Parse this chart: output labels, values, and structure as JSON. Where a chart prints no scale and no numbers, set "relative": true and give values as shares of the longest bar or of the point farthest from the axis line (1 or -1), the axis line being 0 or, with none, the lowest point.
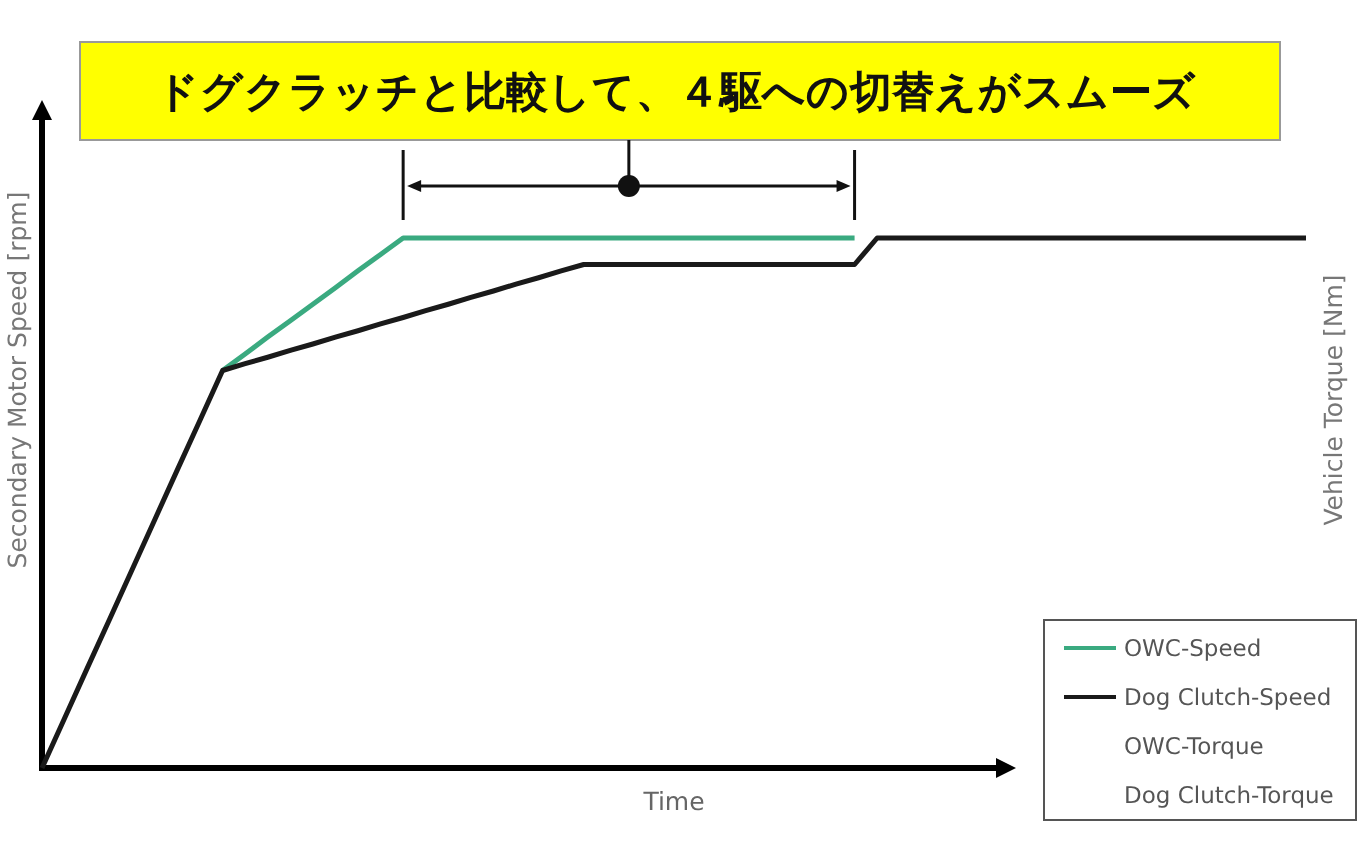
{
  "chart_data": {
    "type": "line",
    "title": "ドグクラッチと比較して、４駆への切替えがスムーズ",
    "xlabel": "Time",
    "ylabel": "Secondary Motor Speed [rpm]",
    "y2label": "Vehicle Torque [Nm]",
    "relative": true,
    "legend": "bottom right",
    "categories": [
      null,
      null,
      null,
      null,
      null,
      null,
      null,
      null,
      null,
      null,
      null,
      null,
      null,
      null,
      null,
      null,
      null,
      null,
      null,
      null,
      null,
      null,
      null,
      null,
      null,
      null,
      null,
      null,
      null,
      null,
      null,
      null,
      null,
      null,
      null,
      null,
      null,
      null,
      null,
      null,
      null,
      null,
      null,
      null,
      null,
      null,
      null,
      null,
      null,
      null,
      null,
      null,
      null,
      null,
      null,
      null,
      null
    ],
    "series": [
      {
        "name": "OWC-Speed",
        "color": "#3aaa80",
        "values": [
          null,
          null,
          null,
          null,
          null,
          null,
          null,
          null,
          0.75,
          0.781,
          0.813,
          0.844,
          0.875,
          0.906,
          0.938,
          0.969,
          1,
          1,
          1,
          1,
          1,
          1,
          1,
          1,
          1,
          1,
          1,
          1,
          1,
          1,
          1,
          1,
          1,
          1,
          1,
          1,
          1,
          null,
          null,
          null,
          null,
          null,
          null,
          null,
          null,
          null,
          null,
          null,
          null,
          null,
          null,
          null,
          null,
          null,
          null,
          null,
          null
        ]
      },
      {
        "name": "Dog Clutch-Speed",
        "color": "#1a1a1a",
        "values": [
          0,
          0.094,
          0.188,
          0.281,
          0.375,
          0.469,
          0.563,
          0.656,
          0.75,
          0.763,
          0.775,
          0.788,
          0.8,
          0.813,
          0.825,
          0.838,
          0.85,
          0.863,
          0.875,
          0.888,
          0.9,
          0.913,
          0.925,
          0.938,
          0.95,
          0.95,
          0.95,
          0.95,
          0.95,
          0.95,
          0.95,
          0.95,
          0.95,
          0.95,
          0.95,
          0.95,
          0.95,
          1,
          1,
          1,
          1,
          1,
          1,
          1,
          1,
          1,
          1,
          1,
          1,
          1,
          1,
          1,
          1,
          1,
          1,
          1,
          1
        ]
      },
      {
        "name": "OWC-Torque",
        "values": [
          null,
          null,
          null,
          null,
          null,
          null,
          null,
          null,
          null,
          null,
          null,
          null,
          null,
          null,
          null,
          null,
          null,
          null,
          null,
          null,
          null,
          null,
          null,
          null,
          null,
          null,
          null,
          null,
          null,
          null,
          null,
          null,
          null,
          null,
          null,
          null,
          null,
          null,
          null,
          null,
          null,
          null,
          null,
          null,
          null,
          null,
          null,
          null,
          null,
          null,
          null,
          null,
          null,
          null,
          null,
          null,
          null
        ]
      },
      {
        "name": "Dog Clutch-Torque",
        "values": [
          null,
          null,
          null,
          null,
          null,
          null,
          null,
          null,
          null,
          null,
          null,
          null,
          null,
          null,
          null,
          null,
          null,
          null,
          null,
          null,
          null,
          null,
          null,
          null,
          null,
          null,
          null,
          null,
          null,
          null,
          null,
          null,
          null,
          null,
          null,
          null,
          null,
          null,
          null,
          null,
          null,
          null,
          null,
          null,
          null,
          null,
          null,
          null,
          null,
          null,
          null,
          null,
          null,
          null,
          null,
          null,
          null
        ]
      }
    ]
  }
}
